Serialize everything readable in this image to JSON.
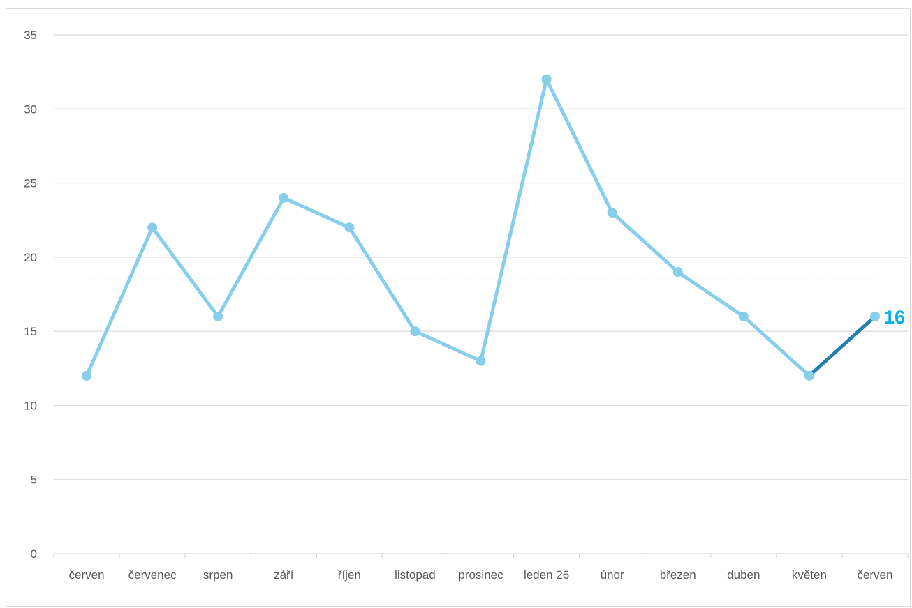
{
  "chart_data": {
    "type": "line",
    "categories": [
      "červen",
      "červenec",
      "srpen",
      "září",
      "říjen",
      "listopad",
      "prosinec",
      "leden 26",
      "únor",
      "březen",
      "duben",
      "květen",
      "červen"
    ],
    "values": [
      12,
      22,
      16,
      24,
      22,
      15,
      13,
      32,
      23,
      19,
      16,
      12,
      16
    ],
    "y_ticks": [
      "0",
      "5",
      "10",
      "15",
      "20",
      "25",
      "30",
      "35"
    ],
    "ylim": [
      0,
      35
    ],
    "average_line": 18.6,
    "last_value_label": "16",
    "grid": true,
    "legend": "none",
    "colors": {
      "series": "#87ceeb",
      "last_segment": "#1f7fb0",
      "average": "#c9dff2",
      "grid": "#d9d9d9",
      "label": "#00b0f0"
    }
  }
}
